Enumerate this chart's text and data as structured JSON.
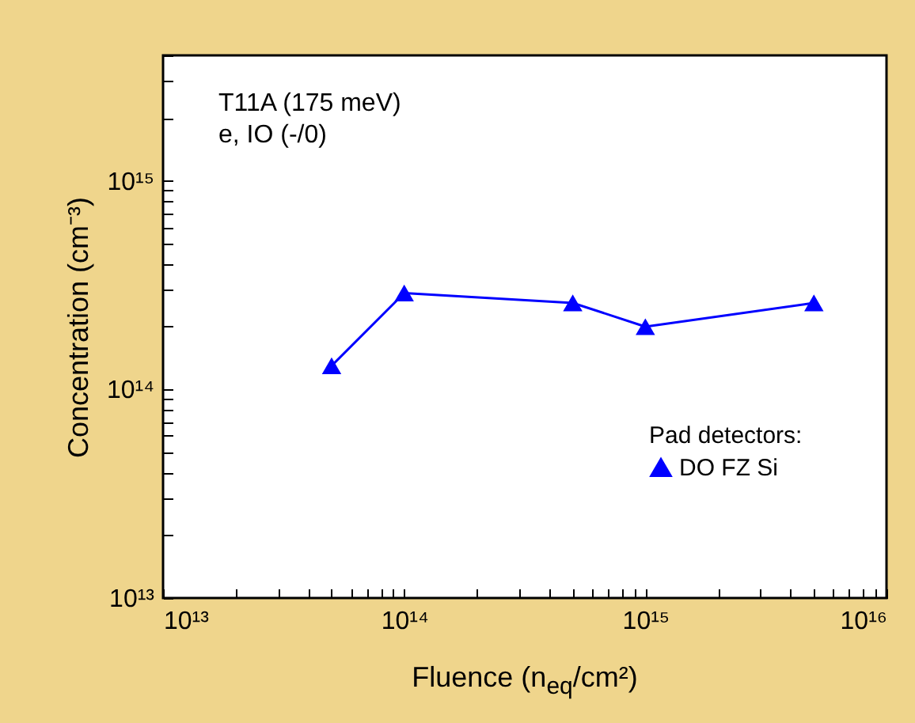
{
  "chart_data": {
    "type": "line",
    "xlabel": "Fluence (n$_{eq}$/cm²)",
    "ylabel": "Concentration (cm⁻³)",
    "annotations": [
      "T11A (175 meV)",
      "e, IO (-/0)"
    ],
    "legend_title": "Pad detectors:",
    "legend": "bottom right",
    "log": "xy",
    "marker": "triangle",
    "line_style": "solid",
    "grid": false,
    "x": [
      50000000000000.0,
      100000000000000.0,
      500000000000000.0,
      1000000000000000.0,
      5000000000000000.0
    ],
    "series": [
      {
        "name": "DO FZ Si",
        "color": "#0000ff",
        "values": [
          130000000000000.0,
          290000000000000.0,
          260000000000000.0,
          200000000000000.0,
          260000000000000.0
        ]
      }
    ],
    "xlim": [
      10000000000000.0,
      1e+16
    ],
    "xticks": [
      {
        "value": 10000000000000.0,
        "label": "10¹³"
      },
      {
        "value": 20000000000000.0,
        "label": null
      },
      {
        "value": 30000000000000.0,
        "label": null
      },
      {
        "value": 40000000000000.0,
        "label": null
      },
      {
        "value": 50000000000000.0,
        "label": null
      },
      {
        "value": 60000000000000.0,
        "label": null
      },
      {
        "value": 70000000000000.0,
        "label": null
      },
      {
        "value": 80000000000000.0,
        "label": null
      },
      {
        "value": 90000000000000.0,
        "label": null
      },
      {
        "value": 100000000000000.0,
        "label": "10¹⁴"
      },
      {
        "value": 200000000000000.0,
        "label": null
      },
      {
        "value": 300000000000000.0,
        "label": null
      },
      {
        "value": 400000000000000.0,
        "label": null
      },
      {
        "value": 500000000000000.0,
        "label": null
      },
      {
        "value": 600000000000000.0,
        "label": null
      },
      {
        "value": 700000000000000.0,
        "label": null
      },
      {
        "value": 800000000000000.0,
        "label": null
      },
      {
        "value": 900000000000000.0,
        "label": null
      },
      {
        "value": 1000000000000000.0,
        "label": "10¹⁵"
      },
      {
        "value": 2000000000000000.0,
        "label": null
      },
      {
        "value": 3000000000000000.0,
        "label": null
      },
      {
        "value": 4000000000000000.0,
        "label": null
      },
      {
        "value": 5000000000000000.0,
        "label": null
      },
      {
        "value": 6000000000000000.0,
        "label": null
      },
      {
        "value": 7000000000000000.0,
        "label": null
      },
      {
        "value": 8000000000000000.0,
        "label": null
      },
      {
        "value": 9000000000000000.0,
        "label": null
      },
      {
        "value": 1e+16,
        "label": "10¹⁶"
      }
    ],
    "ylim": [
      10000000000000.0,
      4000000000000000.0
    ],
    "yticks": [
      {
        "value": 10000000000000.0,
        "label": "10¹³"
      },
      {
        "value": 20000000000000.0,
        "label": null
      },
      {
        "value": 30000000000000.0,
        "label": null
      },
      {
        "value": 40000000000000.0,
        "label": null
      },
      {
        "value": 50000000000000.0,
        "label": null
      },
      {
        "value": 60000000000000.0,
        "label": null
      },
      {
        "value": 70000000000000.0,
        "label": null
      },
      {
        "value": 80000000000000.0,
        "label": null
      },
      {
        "value": 90000000000000.0,
        "label": null
      },
      {
        "value": 100000000000000.0,
        "label": "10¹⁴"
      },
      {
        "value": 200000000000000.0,
        "label": null
      },
      {
        "value": 300000000000000.0,
        "label": null
      },
      {
        "value": 400000000000000.0,
        "label": null
      },
      {
        "value": 500000000000000.0,
        "label": null
      },
      {
        "value": 600000000000000.0,
        "label": null
      },
      {
        "value": 700000000000000.0,
        "label": null
      },
      {
        "value": 800000000000000.0,
        "label": null
      },
      {
        "value": 900000000000000.0,
        "label": null
      },
      {
        "value": 1000000000000000.0,
        "label": "10¹⁵"
      },
      {
        "value": 2000000000000000.0,
        "label": null
      },
      {
        "value": 3000000000000000.0,
        "label": null
      },
      {
        "value": 4000000000000000.0,
        "label": null
      }
    ]
  }
}
